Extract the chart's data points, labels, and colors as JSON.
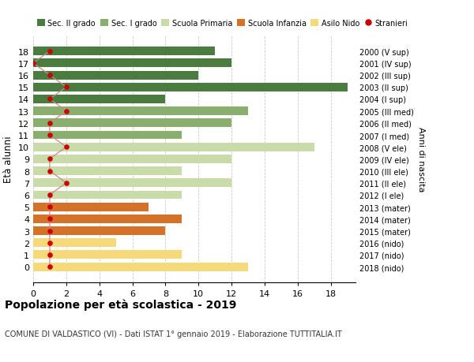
{
  "ages": [
    18,
    17,
    16,
    15,
    14,
    13,
    12,
    11,
    10,
    9,
    8,
    7,
    6,
    5,
    4,
    3,
    2,
    1,
    0
  ],
  "bar_values": [
    11,
    12,
    10,
    19,
    8,
    13,
    12,
    9,
    17,
    12,
    9,
    12,
    9,
    7,
    9,
    8,
    5,
    9,
    13
  ],
  "bar_colors": [
    "#4a7c3f",
    "#4a7c3f",
    "#4a7c3f",
    "#4a7c3f",
    "#4a7c3f",
    "#8aae6e",
    "#8aae6e",
    "#8aae6e",
    "#c8dba8",
    "#c8dba8",
    "#c8dba8",
    "#c8dba8",
    "#c8dba8",
    "#d4722a",
    "#d4722a",
    "#d4722a",
    "#f5d97a",
    "#f5d97a",
    "#f5d97a"
  ],
  "stranieri_values": [
    1,
    0,
    1,
    2,
    1,
    2,
    1,
    1,
    2,
    1,
    1,
    2,
    1,
    1,
    1,
    1,
    1,
    1,
    1
  ],
  "right_labels": [
    "2000 (V sup)",
    "2001 (IV sup)",
    "2002 (III sup)",
    "2003 (II sup)",
    "2004 (I sup)",
    "2005 (III med)",
    "2006 (II med)",
    "2007 (I med)",
    "2008 (V ele)",
    "2009 (IV ele)",
    "2010 (III ele)",
    "2011 (II ele)",
    "2012 (I ele)",
    "2013 (mater)",
    "2014 (mater)",
    "2015 (mater)",
    "2016 (nido)",
    "2017 (nido)",
    "2018 (nido)"
  ],
  "legend_labels": [
    "Sec. II grado",
    "Sec. I grado",
    "Scuola Primaria",
    "Scuola Infanzia",
    "Asilo Nido",
    "Stranieri"
  ],
  "legend_colors": [
    "#4a7c3f",
    "#8aae6e",
    "#c8dba8",
    "#d4722a",
    "#f5d97a",
    "#cc0000"
  ],
  "ylabel": "Età alunni",
  "right_ylabel": "Anni di nascita",
  "title": "Popolazione per età scolastica - 2019",
  "subtitle": "COMUNE DI VALDASTICO (VI) - Dati ISTAT 1° gennaio 2019 - Elaborazione TUTTITALIA.IT",
  "xlim": [
    0,
    19.5
  ],
  "xticks": [
    0,
    2,
    4,
    6,
    8,
    10,
    12,
    14,
    16,
    18
  ],
  "stranieri_color": "#cc0000",
  "stranieri_line_color": "#cc8888",
  "bar_height": 0.72,
  "background_color": "#ffffff",
  "grid_color": "#cccccc"
}
